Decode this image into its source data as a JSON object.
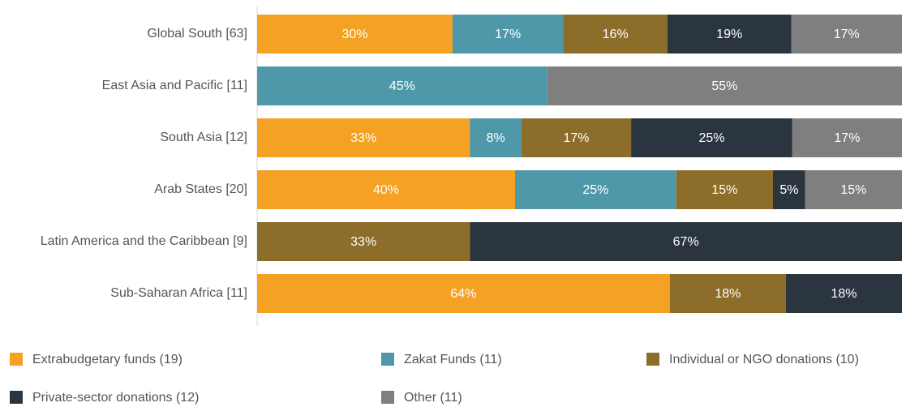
{
  "chart_data": {
    "type": "stacked-bar-horizontal",
    "categories": [
      "Global South [63]",
      "East Asia and Pacific [11]",
      "South Asia [12]",
      "Arab States [20]",
      "Latin America and the Caribbean [9]",
      "Sub-Saharan Africa [11]"
    ],
    "series": [
      {
        "name": "Extrabudgetary funds (19)",
        "color": "#f4a124",
        "values": [
          30,
          null,
          33,
          40,
          null,
          64
        ],
        "value_labels": [
          "30%",
          null,
          "33%",
          "40%",
          null,
          "64%"
        ]
      },
      {
        "name": "Zakat Funds (11)",
        "color": "#4f98aa",
        "values": [
          17,
          45,
          8,
          25,
          null,
          null
        ],
        "value_labels": [
          "17%",
          "45%",
          "8%",
          "25%",
          null,
          null
        ]
      },
      {
        "name": "Individual or NGO donations (10)",
        "color": "#8c6d2a",
        "values": [
          16,
          null,
          17,
          15,
          33,
          18
        ],
        "value_labels": [
          "16%",
          null,
          "17%",
          "15%",
          "33%",
          "18%"
        ]
      },
      {
        "name": "Private-sector donations (12)",
        "color": "#2a3540",
        "values": [
          19,
          null,
          25,
          5,
          67,
          18
        ],
        "value_labels": [
          "19%",
          null,
          "25%",
          "5%",
          "67%",
          "18%"
        ]
      },
      {
        "name": "Other (11)",
        "color": "#7f7f7f",
        "values": [
          17,
          55,
          17,
          15,
          null,
          null
        ],
        "value_labels": [
          "17%",
          "55%",
          "17%",
          "15%",
          null,
          null
        ]
      }
    ],
    "legend": "bottom"
  }
}
